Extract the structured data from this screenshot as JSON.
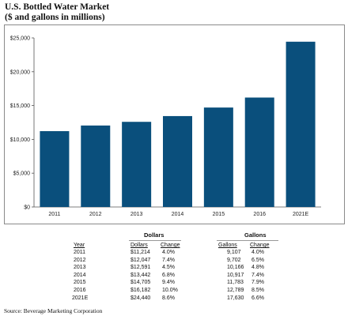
{
  "title": {
    "line1": "U.S. Bottled Water Market",
    "line2": "($ and gallons in millions)"
  },
  "chart_data": {
    "type": "bar",
    "categories": [
      "2011",
      "2012",
      "2013",
      "2014",
      "2015",
      "2016",
      "2021E"
    ],
    "values": [
      11214,
      12047,
      12591,
      13442,
      14705,
      16182,
      24440
    ],
    "ylim": [
      0,
      25000
    ],
    "yticks": [
      "$0",
      "$5,000",
      "$10,000",
      "$15,000",
      "$20,000",
      "$25,000"
    ],
    "ytick_values": [
      0,
      5000,
      10000,
      15000,
      20000,
      25000
    ],
    "bar_color": "#0a4f7c",
    "grid": false
  },
  "table": {
    "dollars_header": "Dollars",
    "gallons_header": "Gallons",
    "col_year": "Year",
    "col_dollars": "Dollars",
    "col_change": "Change",
    "col_gallons": "Gallons",
    "col_change2": "Change",
    "rows": [
      {
        "year": "2011",
        "dollars": "$11,214",
        "dchange": "4.0%",
        "gallons": "9,107",
        "gchange": "4.0%"
      },
      {
        "year": "2012",
        "dollars": "$12,047",
        "dchange": "7.4%",
        "gallons": "9,702",
        "gchange": "6.5%"
      },
      {
        "year": "2013",
        "dollars": "$12,591",
        "dchange": "4.5%",
        "gallons": "10,166",
        "gchange": "4.8%"
      },
      {
        "year": "2014",
        "dollars": "$13,442",
        "dchange": "6.8%",
        "gallons": "10,917",
        "gchange": "7.4%"
      },
      {
        "year": "2015",
        "dollars": "$14,705",
        "dchange": "9.4%",
        "gallons": "11,783",
        "gchange": "7.9%"
      },
      {
        "year": "2016",
        "dollars": "$16,182",
        "dchange": "10.0%",
        "gallons": "12,789",
        "gchange": "8.5%"
      },
      {
        "year": "2021E",
        "dollars": "$24,440",
        "dchange": "8.6%",
        "gallons": "17,630",
        "gchange": "6.6%"
      }
    ]
  },
  "source": "Source: Beverage Marketing Corporation"
}
